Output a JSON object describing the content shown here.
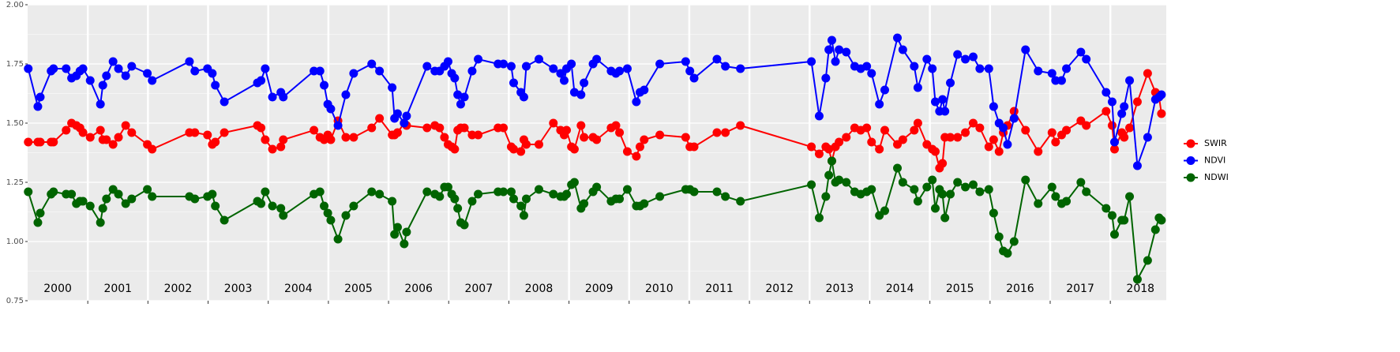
{
  "chart_data": {
    "type": "line",
    "x": [
      2000.01,
      2000.17,
      2000.21,
      2000.39,
      2000.43,
      2000.64,
      2000.73,
      2000.81,
      2000.87,
      2000.92,
      2001.04,
      2001.21,
      2001.25,
      2001.31,
      2001.42,
      2001.51,
      2001.63,
      2001.73,
      2001.99,
      2002.07,
      2002.69,
      2002.78,
      2002.99,
      2003.07,
      2003.12,
      2003.27,
      2003.82,
      2003.88,
      2003.95,
      2004.07,
      2004.21,
      2004.25,
      2004.76,
      2004.86,
      2004.93,
      2004.99,
      2005.04,
      2005.16,
      2005.29,
      2005.42,
      2005.72,
      2005.85,
      2006.06,
      2006.1,
      2006.15,
      2006.26,
      2006.3,
      2006.64,
      2006.77,
      2006.85,
      2006.93,
      2006.99,
      2007.05,
      2007.1,
      2007.15,
      2007.2,
      2007.26,
      2007.39,
      2007.49,
      2007.82,
      2007.91,
      2008.04,
      2008.08,
      2008.2,
      2008.25,
      2008.29,
      2008.5,
      2008.74,
      2008.86,
      2008.92,
      2008.96,
      2009.04,
      2009.09,
      2009.2,
      2009.25,
      2009.4,
      2009.46,
      2009.7,
      2009.78,
      2009.84,
      2009.97,
      2010.12,
      2010.18,
      2010.25,
      2010.51,
      2010.94,
      2011.01,
      2011.08,
      2011.46,
      2011.6,
      2011.85,
      2013.03,
      2013.16,
      2013.27,
      2013.32,
      2013.37,
      2013.43,
      2013.49,
      2013.61,
      2013.75,
      2013.85,
      2013.95,
      2014.03,
      2014.16,
      2014.25,
      2014.46,
      2014.55,
      2014.74,
      2014.8,
      2014.95,
      2015.04,
      2015.09,
      2015.16,
      2015.21,
      2015.25,
      2015.34,
      2015.46,
      2015.59,
      2015.72,
      2015.83,
      2015.98,
      2016.06,
      2016.15,
      2016.22,
      2016.29,
      2016.4,
      2016.59,
      2016.8,
      2017.03,
      2017.09,
      2017.19,
      2017.27,
      2017.51,
      2017.6,
      2017.93,
      2018.03,
      2018.07,
      2018.19,
      2018.23,
      2018.32,
      2018.45,
      2018.62,
      2018.75,
      2018.81,
      2018.85
    ],
    "series": [
      {
        "name": "SWIR",
        "color": "#ff0000",
        "values": [
          1.42,
          1.42,
          1.42,
          1.42,
          1.42,
          1.47,
          1.5,
          1.49,
          1.48,
          1.46,
          1.44,
          1.47,
          1.43,
          1.43,
          1.41,
          1.44,
          1.49,
          1.46,
          1.41,
          1.39,
          1.46,
          1.46,
          1.45,
          1.41,
          1.42,
          1.46,
          1.49,
          1.48,
          1.43,
          1.39,
          1.4,
          1.43,
          1.47,
          1.44,
          1.43,
          1.45,
          1.43,
          1.51,
          1.44,
          1.44,
          1.48,
          1.52,
          1.45,
          1.45,
          1.46,
          1.5,
          1.49,
          1.48,
          1.49,
          1.48,
          1.44,
          1.41,
          1.4,
          1.39,
          1.47,
          1.48,
          1.48,
          1.45,
          1.45,
          1.48,
          1.48,
          1.4,
          1.39,
          1.38,
          1.43,
          1.41,
          1.41,
          1.5,
          1.47,
          1.45,
          1.47,
          1.4,
          1.39,
          1.49,
          1.44,
          1.44,
          1.43,
          1.48,
          1.49,
          1.46,
          1.38,
          1.36,
          1.4,
          1.43,
          1.45,
          1.44,
          1.4,
          1.4,
          1.46,
          1.46,
          1.49,
          1.4,
          1.37,
          1.4,
          1.39,
          1.34,
          1.4,
          1.42,
          1.44,
          1.48,
          1.47,
          1.48,
          1.42,
          1.39,
          1.47,
          1.41,
          1.43,
          1.47,
          1.5,
          1.41,
          1.39,
          1.38,
          1.31,
          1.33,
          1.44,
          1.44,
          1.44,
          1.46,
          1.5,
          1.48,
          1.4,
          1.43,
          1.38,
          1.46,
          1.49,
          1.55,
          1.47,
          1.38,
          1.46,
          1.42,
          1.45,
          1.47,
          1.51,
          1.49,
          1.55,
          1.49,
          1.39,
          1.46,
          1.44,
          1.48,
          1.59,
          1.71,
          1.63,
          1.61,
          1.54
        ]
      },
      {
        "name": "NDVI",
        "color": "#0000ff",
        "values": [
          1.73,
          1.57,
          1.61,
          1.72,
          1.73,
          1.73,
          1.69,
          1.7,
          1.72,
          1.73,
          1.68,
          1.58,
          1.66,
          1.7,
          1.76,
          1.73,
          1.7,
          1.74,
          1.71,
          1.68,
          1.76,
          1.72,
          1.73,
          1.71,
          1.66,
          1.59,
          1.67,
          1.68,
          1.73,
          1.61,
          1.63,
          1.61,
          1.72,
          1.72,
          1.66,
          1.58,
          1.56,
          1.49,
          1.62,
          1.71,
          1.75,
          1.72,
          1.65,
          1.52,
          1.54,
          1.5,
          1.53,
          1.74,
          1.72,
          1.72,
          1.74,
          1.76,
          1.71,
          1.69,
          1.62,
          1.58,
          1.61,
          1.72,
          1.77,
          1.75,
          1.75,
          1.74,
          1.67,
          1.63,
          1.61,
          1.74,
          1.77,
          1.73,
          1.71,
          1.68,
          1.73,
          1.75,
          1.63,
          1.62,
          1.67,
          1.75,
          1.77,
          1.72,
          1.71,
          1.72,
          1.73,
          1.59,
          1.63,
          1.64,
          1.75,
          1.76,
          1.72,
          1.69,
          1.77,
          1.74,
          1.73,
          1.76,
          1.53,
          1.69,
          1.81,
          1.85,
          1.76,
          1.81,
          1.8,
          1.74,
          1.73,
          1.74,
          1.71,
          1.58,
          1.64,
          1.86,
          1.81,
          1.74,
          1.65,
          1.77,
          1.73,
          1.59,
          1.55,
          1.6,
          1.55,
          1.67,
          1.79,
          1.77,
          1.78,
          1.73,
          1.73,
          1.57,
          1.5,
          1.48,
          1.41,
          1.52,
          1.81,
          1.72,
          1.71,
          1.68,
          1.68,
          1.73,
          1.8,
          1.77,
          1.63,
          1.59,
          1.42,
          1.54,
          1.57,
          1.68,
          1.32,
          1.44,
          1.6,
          1.61,
          1.62
        ]
      },
      {
        "name": "NDWI",
        "color": "#006400",
        "values": [
          1.21,
          1.08,
          1.12,
          1.2,
          1.21,
          1.2,
          1.2,
          1.16,
          1.17,
          1.17,
          1.15,
          1.08,
          1.14,
          1.18,
          1.22,
          1.2,
          1.16,
          1.18,
          1.22,
          1.19,
          1.19,
          1.18,
          1.19,
          1.2,
          1.15,
          1.09,
          1.17,
          1.16,
          1.21,
          1.15,
          1.14,
          1.11,
          1.2,
          1.21,
          1.15,
          1.12,
          1.09,
          1.01,
          1.11,
          1.15,
          1.21,
          1.2,
          1.17,
          1.03,
          1.06,
          0.99,
          1.04,
          1.21,
          1.2,
          1.19,
          1.23,
          1.23,
          1.2,
          1.18,
          1.14,
          1.08,
          1.07,
          1.17,
          1.2,
          1.21,
          1.21,
          1.21,
          1.18,
          1.15,
          1.11,
          1.18,
          1.22,
          1.2,
          1.19,
          1.19,
          1.2,
          1.24,
          1.25,
          1.14,
          1.16,
          1.21,
          1.23,
          1.17,
          1.18,
          1.18,
          1.22,
          1.15,
          1.15,
          1.16,
          1.19,
          1.22,
          1.22,
          1.21,
          1.21,
          1.19,
          1.17,
          1.24,
          1.1,
          1.19,
          1.28,
          1.34,
          1.25,
          1.26,
          1.25,
          1.21,
          1.2,
          1.21,
          1.22,
          1.11,
          1.13,
          1.31,
          1.25,
          1.22,
          1.17,
          1.23,
          1.26,
          1.14,
          1.22,
          1.2,
          1.1,
          1.2,
          1.25,
          1.23,
          1.24,
          1.21,
          1.22,
          1.12,
          1.02,
          0.96,
          0.95,
          1.0,
          1.26,
          1.16,
          1.23,
          1.19,
          1.16,
          1.17,
          1.25,
          1.21,
          1.14,
          1.11,
          1.03,
          1.09,
          1.09,
          1.19,
          0.84,
          0.92,
          1.05,
          1.1,
          1.09
        ]
      }
    ],
    "xlim": [
      2000,
      2018.93
    ],
    "xticks": [
      {
        "value": 2000.5,
        "label": "2000"
      },
      {
        "value": 2001.5,
        "label": "2001"
      },
      {
        "value": 2002.5,
        "label": "2002"
      },
      {
        "value": 2003.5,
        "label": "2003"
      },
      {
        "value": 2004.5,
        "label": "2004"
      },
      {
        "value": 2005.5,
        "label": "2005"
      },
      {
        "value": 2006.5,
        "label": "2006"
      },
      {
        "value": 2007.5,
        "label": "2007"
      },
      {
        "value": 2008.5,
        "label": "2008"
      },
      {
        "value": 2009.5,
        "label": "2009"
      },
      {
        "value": 2010.5,
        "label": "2010"
      },
      {
        "value": 2011.5,
        "label": "2011"
      },
      {
        "value": 2012.5,
        "label": "2012"
      },
      {
        "value": 2013.5,
        "label": "2013"
      },
      {
        "value": 2014.5,
        "label": "2014"
      },
      {
        "value": 2015.5,
        "label": "2015"
      },
      {
        "value": 2016.5,
        "label": "2016"
      },
      {
        "value": 2017.5,
        "label": "2017"
      },
      {
        "value": 2018.5,
        "label": "2018"
      }
    ],
    "x_boundaries": [
      2001,
      2002,
      2003,
      2004,
      2005,
      2006,
      2007,
      2008,
      2009,
      2010,
      2011,
      2012,
      2013,
      2014,
      2015,
      2016,
      2017,
      2018
    ],
    "ylim": [
      0.75,
      2
    ],
    "yticks": [
      0.75,
      {
        "value": 1,
        "label": "1.00"
      },
      1.25,
      {
        "value": 1.5,
        "label": "1.50"
      },
      1.75,
      {
        "value": 2,
        "label": "2.00"
      }
    ],
    "yminor": [
      0.875,
      1.125,
      1.375,
      1.625,
      1.875
    ],
    "grid": true,
    "legend": "right"
  }
}
